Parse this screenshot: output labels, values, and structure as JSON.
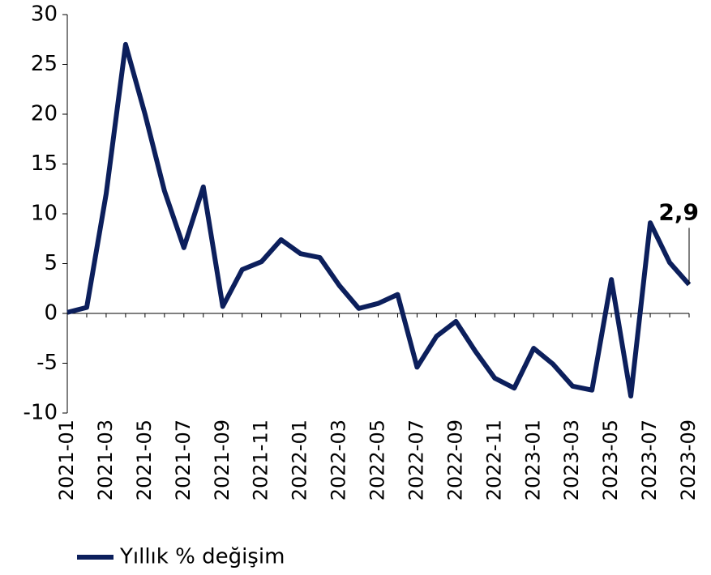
{
  "chart_data": {
    "type": "line",
    "categories": [
      "2021-01",
      null,
      "2021-03",
      null,
      "2021-05",
      null,
      "2021-07",
      null,
      "2021-09",
      null,
      "2021-11",
      null,
      "2022-01",
      null,
      "2022-03",
      null,
      "2022-05",
      null,
      "2022-07",
      null,
      "2022-09",
      null,
      "2022-11",
      null,
      "2023-01",
      null,
      "2023-03",
      null,
      "2023-05",
      null,
      "2023-07",
      null,
      "2023-09"
    ],
    "series": [
      {
        "name": "Yıllık % değişim",
        "color": "#0c1f5c",
        "values": [
          0.1,
          0.6,
          12,
          27,
          20,
          12.3,
          6.6,
          12.7,
          0.7,
          4.4,
          5.2,
          7.4,
          6,
          5.6,
          2.8,
          0.5,
          1,
          1.9,
          -5.4,
          -2.3,
          -0.8,
          -3.8,
          -6.5,
          -7.5,
          -3.5,
          -5.1,
          -7.3,
          -7.7,
          3.4,
          -8.3,
          9.1,
          5.1,
          2.9
        ],
        "value_labels": [
          null,
          null,
          null,
          null,
          null,
          null,
          null,
          null,
          null,
          null,
          null,
          null,
          null,
          null,
          null,
          null,
          null,
          null,
          null,
          null,
          null,
          null,
          null,
          null,
          null,
          null,
          null,
          null,
          null,
          null,
          null,
          null,
          "2,9"
        ]
      }
    ],
    "ylim": [
      -10,
      30
    ],
    "yticks": [
      -10,
      -5,
      0,
      5,
      10,
      15,
      20,
      25,
      30
    ],
    "grid": false,
    "legend": "bottom-left"
  }
}
